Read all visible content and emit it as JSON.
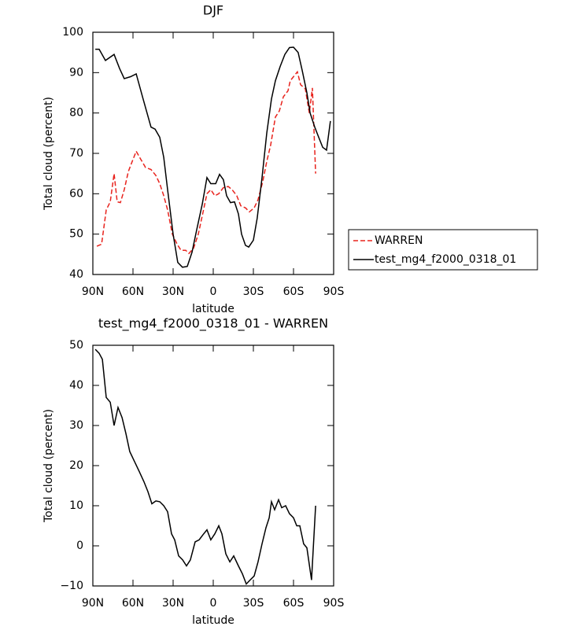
{
  "chart_data": [
    {
      "type": "line",
      "title": "DJF",
      "xlabel": "latitude",
      "ylabel": "Total cloud (percent)",
      "xlim": [
        90,
        -90
      ],
      "xticks": [
        {
          "value": 90,
          "label": "90N"
        },
        {
          "value": 60,
          "label": "60N"
        },
        {
          "value": 30,
          "label": "30N"
        },
        0,
        {
          "value": -30,
          "label": "30S"
        },
        {
          "value": -60,
          "label": "60S"
        },
        {
          "value": -90,
          "label": "90S"
        }
      ],
      "ylim": [
        40,
        100
      ],
      "yticks": [
        40,
        50,
        60,
        70,
        80,
        90,
        100
      ],
      "legend": "outside-right",
      "series": [
        {
          "name": "WARREN",
          "color": "#e8231d",
          "dash": true,
          "x": [
            87,
            83.5,
            80,
            77,
            74.1,
            71.8,
            69.4,
            66.5,
            63.5,
            60.6,
            57.6,
            54.1,
            50.6,
            46.5,
            42.9,
            40,
            37,
            34.1,
            30.6,
            27,
            24.1,
            20.6,
            18.2,
            14.7,
            11.2,
            7.6,
            4.7,
            1.8,
            -1.2,
            -4.1,
            -7.6,
            -11.2,
            -14.1,
            -17.6,
            -20.6,
            -24.1,
            -27,
            -30.6,
            -33.5,
            -37,
            -40,
            -42.9,
            -46.5,
            -49.4,
            -52.4,
            -55.9,
            -57.6,
            -60,
            -62.9,
            -65.3,
            -68.8,
            -71.8,
            -74.1,
            -76.5
          ],
          "values": [
            47,
            47.5,
            56,
            58,
            65,
            58,
            57.8,
            61,
            65.5,
            68,
            70.5,
            68.5,
            66.5,
            66,
            64.5,
            62.5,
            59.5,
            56,
            50,
            47.5,
            46,
            46,
            45.2,
            46.5,
            50,
            55.5,
            60,
            61,
            59.5,
            60,
            61.5,
            61.8,
            61,
            59.5,
            57,
            56.5,
            55.5,
            56.5,
            58.5,
            63,
            68,
            72,
            79,
            80.5,
            84,
            85.5,
            88,
            89,
            90.2,
            87,
            86,
            80,
            86.2,
            65
          ]
        },
        {
          "name": "test_mg4_f2000_0318_01",
          "color": "#000000",
          "dash": false,
          "x": [
            88.2,
            85.3,
            80.6,
            74.1,
            70,
            66.5,
            61.8,
            57.6,
            52.9,
            46.5,
            43.5,
            40,
            37,
            34.1,
            30,
            26.5,
            23,
            19.4,
            15.9,
            12.4,
            8.2,
            4.7,
            1.8,
            -1.8,
            -4.7,
            -7.6,
            -10,
            -12.9,
            -15.9,
            -18.8,
            -21.2,
            -24.1,
            -26.5,
            -30,
            -32.9,
            -36.5,
            -40,
            -43.5,
            -46.5,
            -50,
            -53.5,
            -57,
            -60,
            -63.5,
            -66.5,
            -70,
            -72.4,
            -75.9,
            -78.8,
            -81.8,
            -84.7,
            -87.6
          ],
          "values": [
            95.8,
            95.8,
            93,
            94.5,
            91,
            88.5,
            89,
            89.7,
            84,
            76.5,
            76,
            74,
            69,
            61,
            50,
            43,
            41.8,
            42,
            45.5,
            51,
            57.5,
            64,
            62.5,
            62.5,
            64.8,
            63.5,
            59.5,
            57.8,
            58,
            55,
            50,
            47.2,
            46.8,
            48.5,
            54,
            64,
            75,
            83.5,
            88,
            91.5,
            94.5,
            96.2,
            96.3,
            95,
            90.5,
            85,
            80,
            76.5,
            74,
            71.5,
            70.8,
            78
          ]
        }
      ]
    },
    {
      "type": "line",
      "title": "test_mg4_f2000_0318_01 - WARREN",
      "xlabel": "latitude",
      "ylabel": "Total cloud (percent)",
      "xlim": [
        90,
        -90
      ],
      "xticks": [
        {
          "value": 90,
          "label": "90N"
        },
        {
          "value": 60,
          "label": "60N"
        },
        {
          "value": 30,
          "label": "30N"
        },
        0,
        {
          "value": -30,
          "label": "30S"
        },
        {
          "value": -60,
          "label": "60S"
        },
        {
          "value": -90,
          "label": "90S"
        }
      ],
      "ylim": [
        -10,
        50
      ],
      "yticks": [
        {
          "value": -10,
          "label": "−10"
        },
        0,
        10,
        20,
        30,
        40,
        50
      ],
      "series": [
        {
          "color": "#000000",
          "dash": false,
          "x": [
            88.2,
            85.3,
            82.9,
            80,
            77,
            74.1,
            71.2,
            68.2,
            65.3,
            62.4,
            58.8,
            55.3,
            51.8,
            48.8,
            45.9,
            42.9,
            40,
            37,
            34.1,
            31.2,
            28.8,
            25.9,
            22.9,
            20,
            17.1,
            13.5,
            10.6,
            7.6,
            4.7,
            1.8,
            -1.2,
            -4.1,
            -6.5,
            -9.4,
            -12.4,
            -15.3,
            -18.8,
            -21.8,
            -24.7,
            -27.6,
            -30.6,
            -33.5,
            -36.5,
            -39.4,
            -41.8,
            -43.5,
            -45.9,
            -48.8,
            -51.2,
            -54.1,
            -57,
            -60,
            -62.4,
            -64.7,
            -67.6,
            -70,
            -73.5,
            -76.5
          ],
          "values": [
            49,
            48,
            46.5,
            37,
            35.8,
            30,
            34.5,
            32,
            28,
            23.5,
            21,
            18.5,
            16,
            13.5,
            10.5,
            11.2,
            11,
            10,
            8.5,
            3,
            1.5,
            -2.5,
            -3.5,
            -5,
            -3.5,
            1,
            1.5,
            2.8,
            4,
            1.5,
            3,
            5,
            3,
            -2,
            -4,
            -2.5,
            -5,
            -7,
            -9.5,
            -8.5,
            -7.5,
            -4,
            0.5,
            4.5,
            7,
            11,
            9,
            11.5,
            9.5,
            10,
            8,
            7,
            5,
            5,
            0.5,
            -0.5,
            -8.5,
            10
          ]
        }
      ]
    }
  ]
}
